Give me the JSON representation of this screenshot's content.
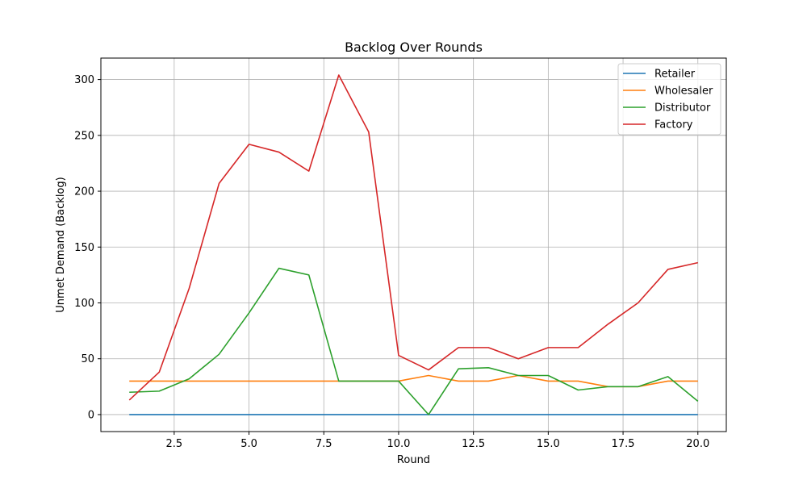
{
  "chart_data": {
    "type": "line",
    "title": "Backlog Over Rounds",
    "xlabel": "Round",
    "ylabel": "Unmet Demand (Backlog)",
    "x": [
      1,
      2,
      3,
      4,
      5,
      6,
      7,
      8,
      9,
      10,
      11,
      12,
      13,
      14,
      15,
      16,
      17,
      18,
      19,
      20
    ],
    "xlim": [
      0.05,
      20.95
    ],
    "ylim": [
      -15.2,
      319.2
    ],
    "xticks": [
      2.5,
      5.0,
      7.5,
      10.0,
      12.5,
      15.0,
      17.5,
      20.0
    ],
    "xtick_labels": [
      "2.5",
      "5.0",
      "7.5",
      "10.0",
      "12.5",
      "15.0",
      "17.5",
      "20.0"
    ],
    "yticks": [
      0,
      50,
      100,
      150,
      200,
      250,
      300
    ],
    "ytick_labels": [
      "0",
      "50",
      "100",
      "150",
      "200",
      "250",
      "300"
    ],
    "grid": true,
    "legend_position": "top-right",
    "series": [
      {
        "name": "Retailer",
        "color": "#1f77b4",
        "values": [
          0,
          0,
          0,
          0,
          0,
          0,
          0,
          0,
          0,
          0,
          0,
          0,
          0,
          0,
          0,
          0,
          0,
          0,
          0,
          0
        ]
      },
      {
        "name": "Wholesaler",
        "color": "#ff7f0e",
        "values": [
          30,
          30,
          30,
          30,
          30,
          30,
          30,
          30,
          30,
          30,
          35,
          30,
          30,
          35,
          30,
          30,
          25,
          25,
          30,
          30
        ]
      },
      {
        "name": "Distributor",
        "color": "#2ca02c",
        "values": [
          20,
          21,
          32,
          54,
          91,
          131,
          125,
          30,
          30,
          30,
          0,
          41,
          42,
          35,
          35,
          22,
          25,
          25,
          34,
          12
        ]
      },
      {
        "name": "Factory",
        "color": "#d62728",
        "values": [
          13,
          38,
          113,
          207,
          242,
          235,
          218,
          304,
          253,
          53,
          40,
          60,
          60,
          50,
          60,
          60,
          81,
          100,
          130,
          136
        ]
      }
    ]
  }
}
